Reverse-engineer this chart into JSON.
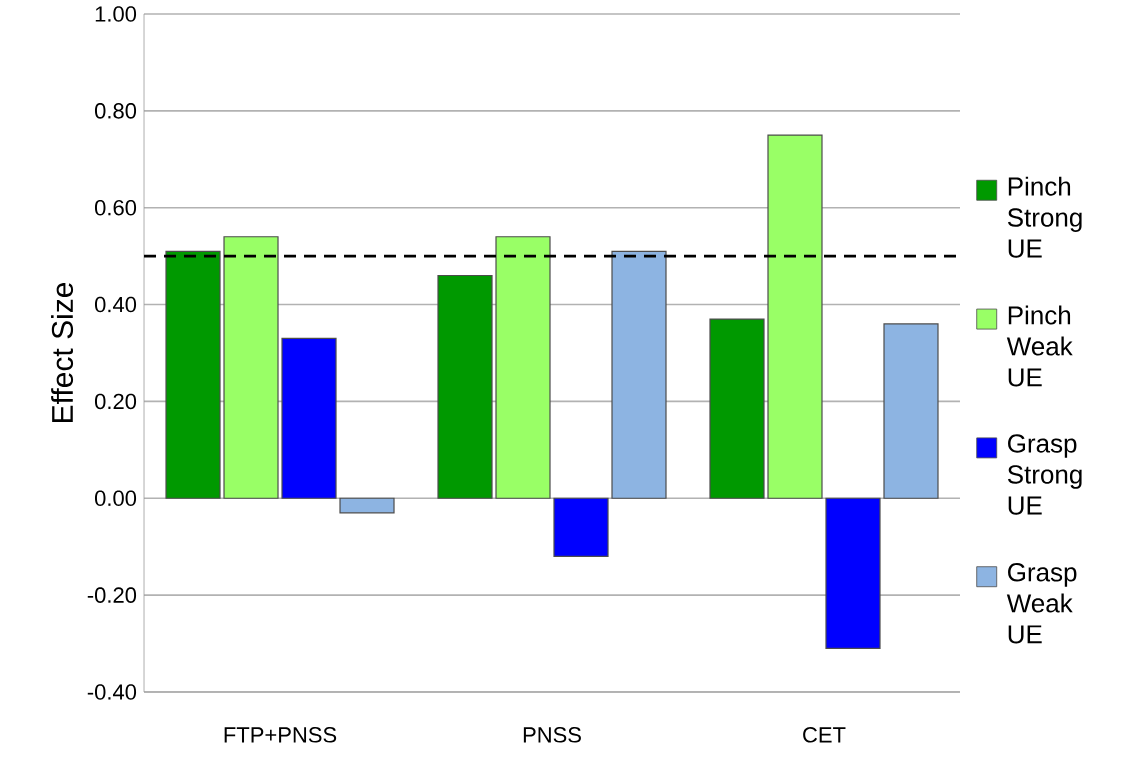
{
  "chart_data": {
    "type": "bar",
    "ylabel": "Effect Size",
    "categories": [
      "FTP+PNSS",
      "PNSS",
      "CET"
    ],
    "series": [
      {
        "name": "Pinch Strong UE",
        "color": "#009900",
        "values": [
          0.51,
          0.46,
          0.37
        ]
      },
      {
        "name": "Pinch Weak UE",
        "color": "#99ff66",
        "values": [
          0.54,
          0.54,
          0.75
        ]
      },
      {
        "name": "Grasp Strong UE",
        "color": "#0000ff",
        "values": [
          0.33,
          -0.12,
          -0.31
        ]
      },
      {
        "name": "Grasp Weak UE",
        "color": "#8db4e2",
        "values": [
          -0.03,
          0.51,
          0.36
        ]
      }
    ],
    "ylim": [
      -0.4,
      1.0
    ],
    "yticks": [
      {
        "value": -0.4,
        "label": "-0.40"
      },
      {
        "value": -0.2,
        "label": "-0.20"
      },
      {
        "value": 0,
        "label": "0.00"
      },
      {
        "value": 0.2,
        "label": "0.20"
      },
      {
        "value": 0.4,
        "label": "0.40"
      },
      {
        "value": 0.6,
        "label": "0.60"
      },
      {
        "value": 0.8,
        "label": "0.80"
      },
      {
        "value": 1.0,
        "label": "1.00"
      }
    ],
    "ref_lines": [
      {
        "axis": "y",
        "value": 0.5,
        "color": "#000000",
        "line_style": "dashed"
      }
    ],
    "grid": "y",
    "legend": "right"
  }
}
